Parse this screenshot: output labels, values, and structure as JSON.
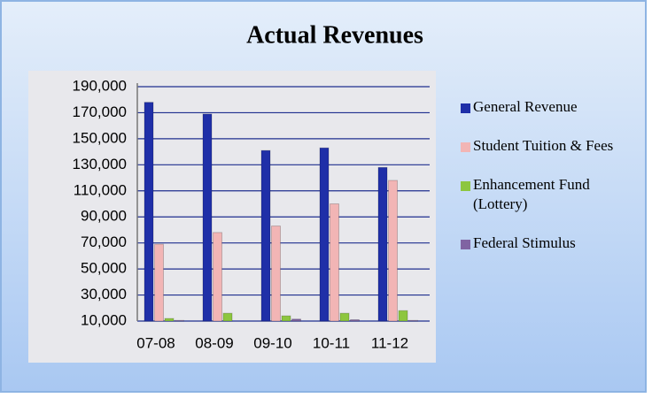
{
  "chart_data": {
    "type": "bar",
    "title": "Actual Revenues",
    "categories": [
      "07-08",
      "08-09",
      "09-10",
      "10-11",
      "11-12"
    ],
    "series": [
      {
        "name": "General Revenue",
        "color": "#1f2fa8",
        "values": [
          178000,
          169000,
          141000,
          143000,
          128000
        ]
      },
      {
        "name": "Student Tuition & Fees",
        "color": "#f2b5b5",
        "values": [
          69000,
          78000,
          83000,
          100000,
          118000
        ]
      },
      {
        "name": "Enhancement Fund (Lottery)",
        "color": "#8dc63f",
        "values": [
          12000,
          16000,
          14000,
          16000,
          18000
        ]
      },
      {
        "name": "Federal Stimulus",
        "color": "#8064a2",
        "values": [
          10500,
          10000,
          11500,
          11000,
          10500
        ]
      }
    ],
    "ylim": [
      10000,
      190000
    ],
    "yticks": [
      {
        "value": 10000,
        "label": "10,000"
      },
      {
        "value": 30000,
        "label": "30,000"
      },
      {
        "value": 50000,
        "label": "50,000"
      },
      {
        "value": 70000,
        "label": "70,000"
      },
      {
        "value": 90000,
        "label": "90,000"
      },
      {
        "value": 110000,
        "label": "110,000"
      },
      {
        "value": 130000,
        "label": "130,000"
      },
      {
        "value": 150000,
        "label": "150,000"
      },
      {
        "value": 170000,
        "label": "170,000"
      },
      {
        "value": 190000,
        "label": "190,000"
      }
    ],
    "grid": true,
    "legend": "right"
  }
}
